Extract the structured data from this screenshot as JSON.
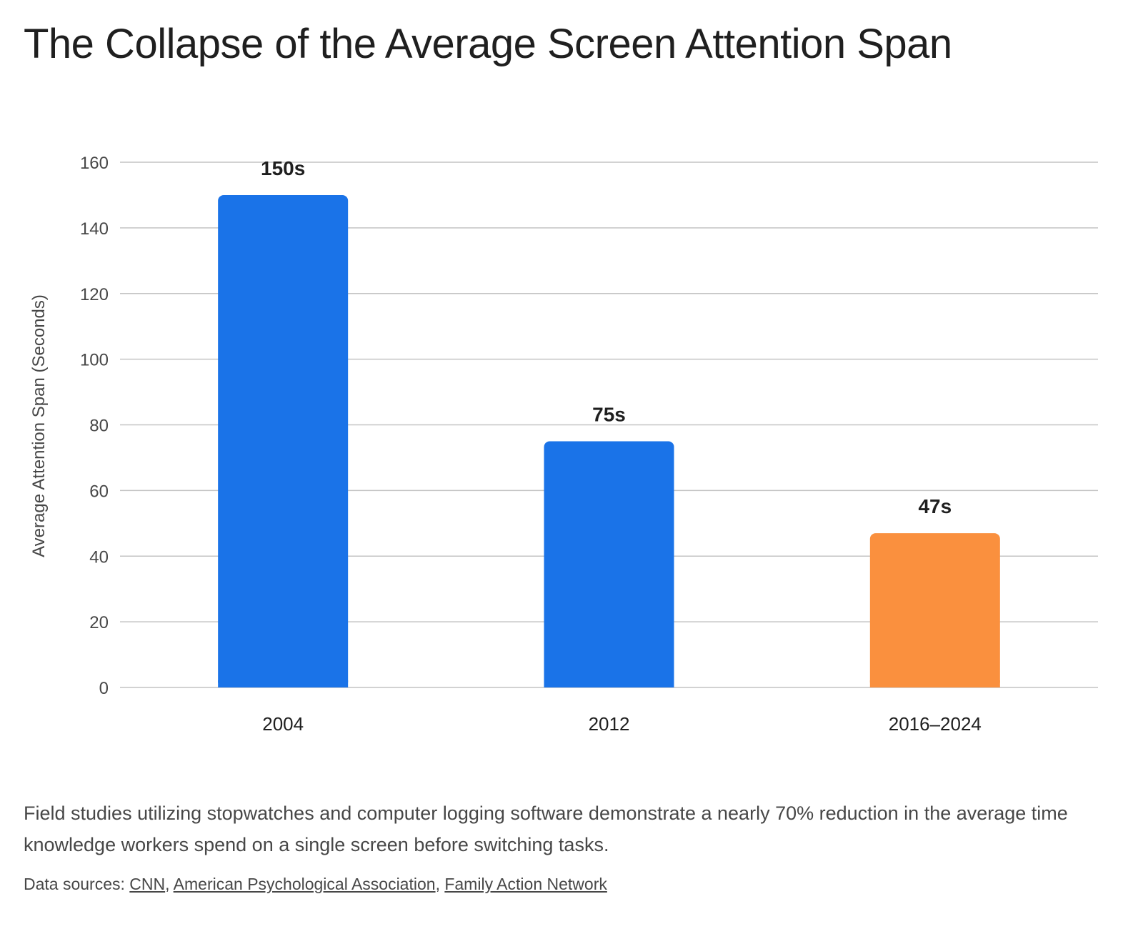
{
  "chart_data": {
    "type": "bar",
    "title": "The Collapse of the Average Screen Attention Span",
    "categories": [
      "2004",
      "2012",
      "2016–2024"
    ],
    "values": [
      150,
      75,
      47
    ],
    "data_labels": [
      "150s",
      "75s",
      "47s"
    ],
    "bar_colors": [
      "#1a73e8",
      "#1a73e8",
      "#fa903e"
    ],
    "xlabel": "",
    "ylabel": "Average Attention Span (Seconds)",
    "ylim": [
      0,
      160
    ],
    "yticks": [
      0,
      20,
      40,
      60,
      80,
      100,
      120,
      140,
      160
    ],
    "grid": true,
    "legend": "none"
  },
  "description": "Field studies utilizing stopwatches and computer logging software demonstrate a nearly 70% reduction in the average time knowledge workers spend on a single screen before switching tasks.",
  "sources": {
    "prefix": "Data sources: ",
    "links": [
      "CNN",
      "American Psychological Association",
      "Family Action Network"
    ]
  },
  "colors": {
    "primary_bar": "#1a73e8",
    "highlight_bar": "#fa903e",
    "gridline": "#c4c4c4",
    "text": "#1f1f1f",
    "muted_text": "#474747"
  }
}
